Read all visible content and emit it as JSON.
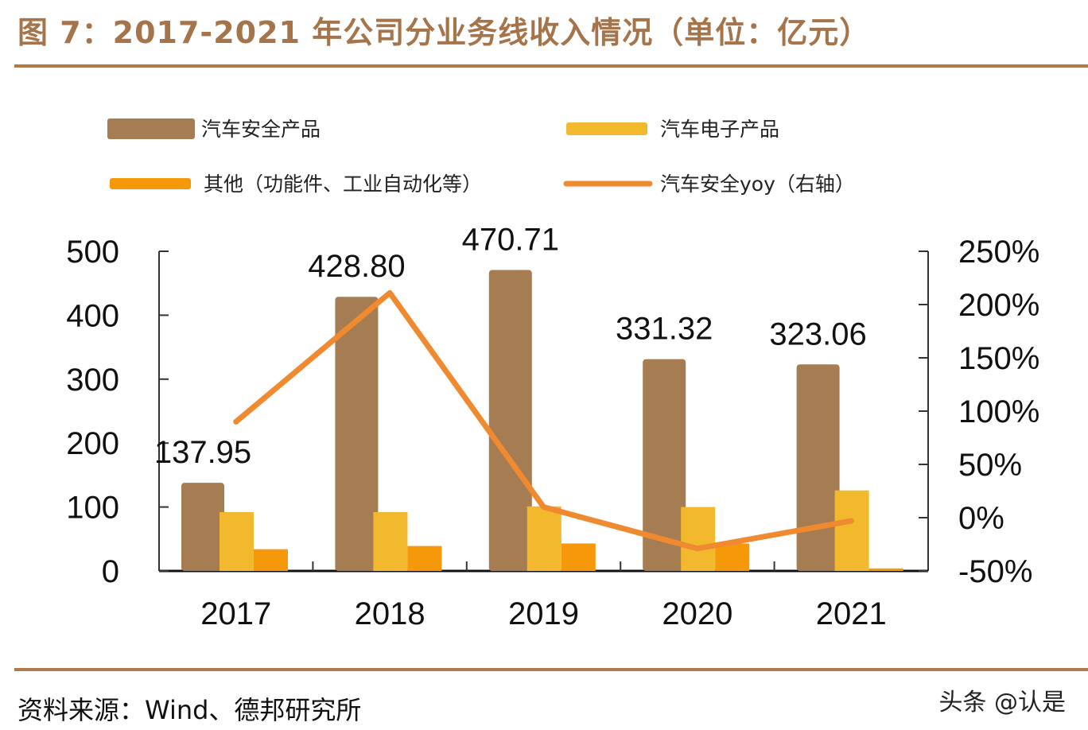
{
  "title": "图 7：2017-2021 年公司分业务线收入情况（单位：亿元）",
  "source": "资料来源：Wind、德邦研究所",
  "watermark": "头条 @认是",
  "chart_data": {
    "type": "bar",
    "title": "",
    "categories": [
      "2017",
      "2018",
      "2019",
      "2020",
      "2021"
    ],
    "series": [
      {
        "name": "汽车安全产品",
        "type": "bar",
        "axis": "left",
        "color": "#a67c52",
        "values": [
          137.95,
          428.8,
          470.71,
          331.32,
          323.06
        ],
        "labels": [
          "137.95",
          "428.80",
          "470.71",
          "331.32",
          "323.06"
        ]
      },
      {
        "name": "汽车电子产品",
        "type": "bar",
        "axis": "left",
        "color": "#f2b92e",
        "values": [
          92,
          92,
          101,
          100,
          126
        ]
      },
      {
        "name": "其他（功能件、工业自动化等）",
        "type": "bar",
        "axis": "left",
        "color": "#f5980a",
        "values": [
          34,
          39,
          43,
          43,
          4
        ]
      },
      {
        "name": "汽车安全yoy（右轴）",
        "type": "line",
        "axis": "right",
        "color": "#f08a30",
        "values": [
          90,
          211,
          10,
          -29,
          -3
        ]
      }
    ],
    "y_left": {
      "min": 0,
      "max": 500,
      "ticks": [
        "0",
        "100",
        "200",
        "300",
        "400",
        "500"
      ]
    },
    "y_right": {
      "min": -50,
      "max": 250,
      "ticks": [
        "-50%",
        "0%",
        "50%",
        "100%",
        "150%",
        "200%",
        "250%"
      ]
    },
    "legend_position": "top",
    "grid": false
  }
}
